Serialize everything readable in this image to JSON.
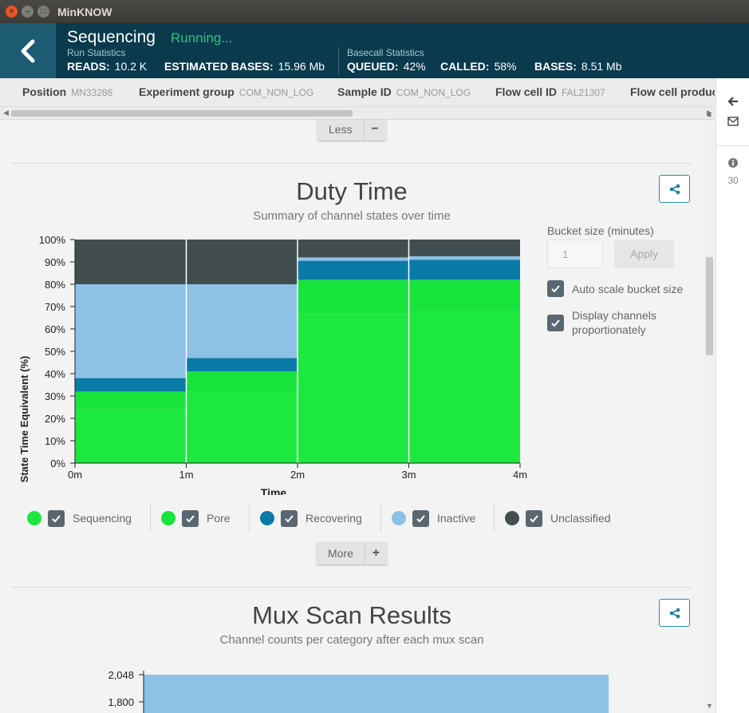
{
  "window": {
    "title": "MinKNOW"
  },
  "header": {
    "title": "Sequencing",
    "status": "Running...",
    "run_stats_label": "Run Statistics",
    "basecall_stats_label": "Basecall Statistics",
    "reads_label": "READS:",
    "reads_value": "10.2 K",
    "bases_est_label": "ESTIMATED BASES:",
    "bases_est_value": "15.96 Mb",
    "queued_label": "QUEUED:",
    "queued_value": "42%",
    "called_label": "CALLED:",
    "called_value": "58%",
    "bases_label": "BASES:",
    "bases_value": "8.51 Mb"
  },
  "infobar": {
    "position_label": "Position",
    "position_value": "MN33286",
    "group_label": "Experiment group",
    "group_value": "COM_NON_LOG",
    "sample_label": "Sample ID",
    "sample_value": "COM_NON_LOG",
    "flowcell_label": "Flow cell ID",
    "flowcell_value": "FAL21307",
    "product_label": "Flow cell produc"
  },
  "side_panel": {
    "notification_count": "30"
  },
  "less_button": {
    "label": "Less",
    "icon": "minus-icon"
  },
  "more_button": {
    "label": "More",
    "icon": "plus-icon"
  },
  "duty_time": {
    "title": "Duty Time",
    "subtitle": "Summary of channel states over time",
    "bucket_label": "Bucket size (minutes)",
    "bucket_value": "1",
    "apply_label": "Apply",
    "auto_scale_label": "Auto scale bucket size",
    "display_prop_label": "Display channels proportionately"
  },
  "legend": [
    {
      "label": "Sequencing",
      "color": "#1de83f"
    },
    {
      "label": "Pore",
      "color": "#19e33d"
    },
    {
      "label": "Recovering",
      "color": "#0a7aa6"
    },
    {
      "label": "Inactive",
      "color": "#8ec1e6"
    },
    {
      "label": "Unclassified",
      "color": "#424d4f"
    }
  ],
  "mux_scan": {
    "title": "Mux Scan Results",
    "subtitle": "Channel counts per category after each mux scan"
  },
  "chart_data": [
    {
      "type": "bar",
      "stacked": true,
      "xlabel": "Time",
      "ylabel": "State Time Equivalent (%)",
      "x_ticks": [
        "0m",
        "1m",
        "2m",
        "3m",
        "4m"
      ],
      "y_ticks": [
        "0%",
        "10%",
        "20%",
        "30%",
        "40%",
        "50%",
        "60%",
        "70%",
        "80%",
        "90%",
        "100%"
      ],
      "ylim": [
        0,
        100
      ],
      "categories": [
        "0-1m",
        "1-2m",
        "2-3m",
        "3-4m"
      ],
      "series": [
        {
          "name": "Sequencing",
          "color": "#1de83f",
          "values": [
            24.5,
            32.5,
            66.5,
            68
          ]
        },
        {
          "name": "Pore",
          "color": "#19e33d",
          "values": [
            7.5,
            8.5,
            15.5,
            14
          ]
        },
        {
          "name": "Recovering",
          "color": "#0a7aa6",
          "values": [
            6,
            6,
            8.5,
            9
          ]
        },
        {
          "name": "Inactive",
          "color": "#8ec1e6",
          "values": [
            42,
            33,
            1.5,
            1.5
          ]
        },
        {
          "name": "Unclassified",
          "color": "#424d4f",
          "values": [
            20,
            20,
            8,
            7.5
          ]
        }
      ]
    },
    {
      "type": "bar",
      "y_ticks": [
        "2,048",
        "1,800"
      ],
      "series": [
        {
          "color": "#8ec1e6",
          "values": [
            2048
          ]
        }
      ]
    }
  ]
}
